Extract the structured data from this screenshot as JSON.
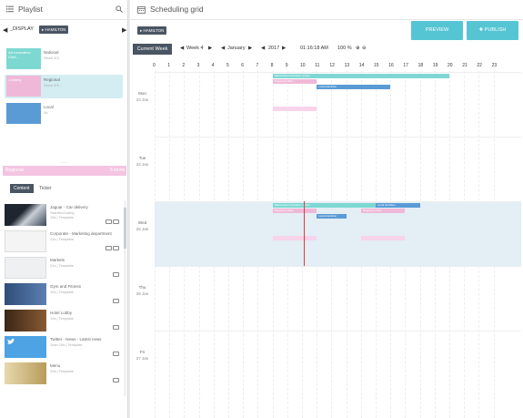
{
  "playlist": {
    "title": "Playlist",
    "display_label": "_DISPLAY",
    "chip": "HAMILTON",
    "rows": [
      {
        "swatch_text": "Art Innovation Cent...",
        "name": "National",
        "sub": "Since 4/3",
        "color": "#7ed8d2"
      },
      {
        "swatch_text": "1 Abbey",
        "name": "Regional",
        "sub": "Since 4/3...",
        "color": "#f0b8d8"
      },
      {
        "swatch_text": "",
        "name": "Local",
        "sub": "3d",
        "color": "#5b9bd5"
      }
    ],
    "divider_text": "——",
    "pink_bar": {
      "label": "Regional",
      "count": "6 items"
    }
  },
  "tabs": {
    "content": "Content",
    "ticker": "Ticker"
  },
  "content_items": [
    {
      "title": "Jaguar - Car delivery",
      "sub": "Sweden/Lobby",
      "sub2": "15s | Template",
      "thumb": "#2a3441"
    },
    {
      "title": "Corporate - Marketing department",
      "sub": "21s | Template",
      "thumb": "#f2f2f2"
    },
    {
      "title": "Markets",
      "sub": "21s | Template",
      "thumb": "#eaeaea"
    },
    {
      "title": "Gym and Fitness",
      "sub": "10s | Template",
      "thumb": "#2f4e7a"
    },
    {
      "title": "Hotel Lobby",
      "sub": "10s | Template",
      "thumb": "#5a3a22"
    },
    {
      "title": "Twitter - News - Latest news",
      "sub": "1min 15s | Template",
      "thumb": "#4da3e3"
    },
    {
      "title": "Menu",
      "sub": "20s | Template",
      "thumb": "#d8c79a"
    }
  ],
  "schedule": {
    "title": "Scheduling grid",
    "chip": "HAMILTON",
    "preview": "PREVIEW",
    "publish": "PUBLISH",
    "current_week": "Current Week",
    "week": "Week 4",
    "month": "January",
    "year": "2017",
    "time": "01:16:18 AM",
    "zoom": "100 %",
    "hours": [
      "0",
      "1",
      "2",
      "3",
      "4",
      "5",
      "6",
      "7",
      "8",
      "9",
      "10",
      "11",
      "12",
      "13",
      "14",
      "15",
      "16",
      "17",
      "18",
      "19",
      "20",
      "21",
      "22",
      "23"
    ],
    "days": [
      {
        "day": "Mon",
        "date": "23 Jan"
      },
      {
        "day": "Tue",
        "date": "24 Jan"
      },
      {
        "day": "Wed",
        "date": "25 Jan"
      },
      {
        "day": "Thu",
        "date": "26 Jan"
      },
      {
        "day": "Fri",
        "date": "27 Jan"
      }
    ],
    "bars": [
      {
        "day": 0,
        "row": 0,
        "start": 8,
        "end": 20,
        "color": "#7ed8d2",
        "label": "Nationwide Innovation Center"
      },
      {
        "day": 0,
        "row": 1,
        "start": 8,
        "end": 11,
        "color": "#f0b8d8",
        "label": "Regional Lobby"
      },
      {
        "day": 0,
        "row": 2,
        "start": 11,
        "end": 16,
        "color": "#5b9bd5",
        "label": "Local Hamilton"
      },
      {
        "day": 0,
        "row": 6,
        "start": 8,
        "end": 11,
        "color": "#f7d4e9",
        "label": ""
      },
      {
        "day": 2,
        "row": 0,
        "start": 8,
        "end": 11,
        "color": "#7ed8d2",
        "label": "Nationwide Innovation Center"
      },
      {
        "day": 2,
        "row": 0,
        "start": 11,
        "end": 15,
        "color": "#7ed8d2",
        "label": ""
      },
      {
        "day": 2,
        "row": 0,
        "start": 15,
        "end": 18,
        "color": "#5b9bd5",
        "label": "Local Hamilton"
      },
      {
        "day": 2,
        "row": 1,
        "start": 8,
        "end": 11,
        "color": "#f0b8d8",
        "label": "Regional Lobby"
      },
      {
        "day": 2,
        "row": 1,
        "start": 14,
        "end": 17,
        "color": "#f0b8d8",
        "label": "Regional Lobby"
      },
      {
        "day": 2,
        "row": 2,
        "start": 11,
        "end": 13,
        "color": "#5b9bd5",
        "label": "Local Hamilton"
      },
      {
        "day": 2,
        "row": 6,
        "start": 8,
        "end": 11,
        "color": "#f7d4e9",
        "label": ""
      },
      {
        "day": 2,
        "row": 6,
        "start": 14,
        "end": 17,
        "color": "#f7d4e9",
        "label": ""
      }
    ]
  },
  "colors": {
    "accent": "#56c5d3",
    "dark": "#4a5563",
    "now_line": "#e0393e"
  }
}
